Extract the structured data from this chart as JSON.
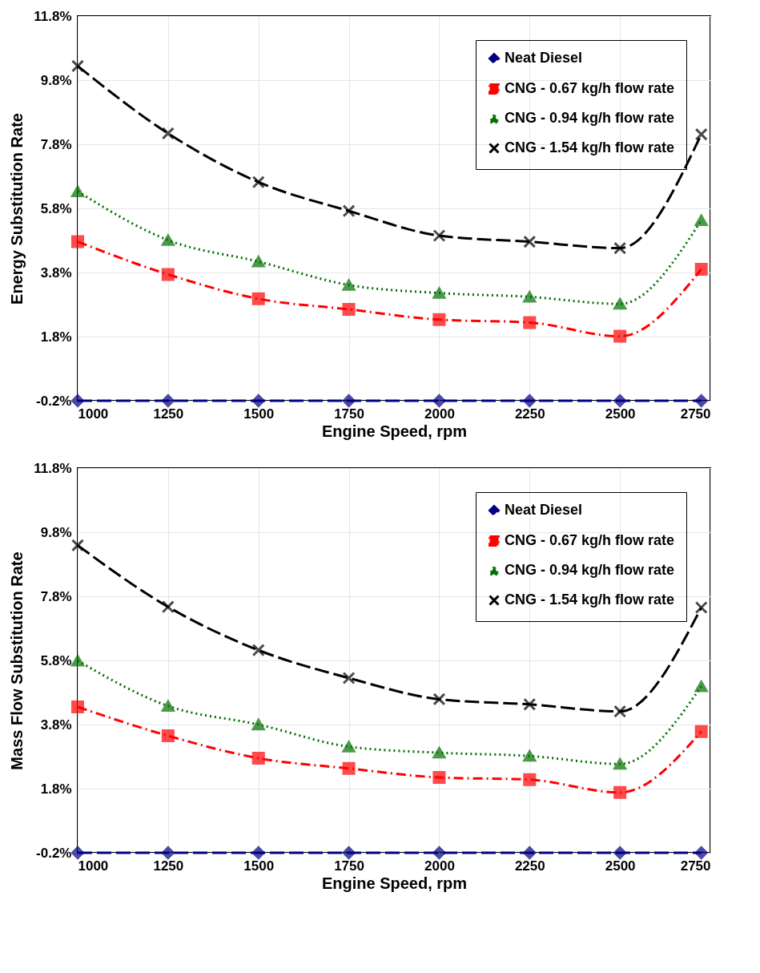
{
  "chart_data": [
    {
      "type": "line",
      "xlabel": "Engine Speed, rpm",
      "ylabel": "Energy Substitution Rate",
      "x": [
        1000,
        1250,
        1500,
        1750,
        2000,
        2250,
        2500,
        2725
      ],
      "xlim": [
        1000,
        2750
      ],
      "xticks": [
        1000,
        1250,
        1500,
        1750,
        2000,
        2250,
        2500,
        2750
      ],
      "ylim": [
        -0.2,
        11.8
      ],
      "yticks": [
        {
          "value": -0.2,
          "label": "-0.2%"
        },
        {
          "value": 1.8,
          "label": "1.8%"
        },
        {
          "value": 3.8,
          "label": "3.8%"
        },
        {
          "value": 5.8,
          "label": "5.8%"
        },
        {
          "value": 7.8,
          "label": "7.8%"
        },
        {
          "value": 9.8,
          "label": "9.8%"
        },
        {
          "value": 11.8,
          "label": "11.8%"
        }
      ],
      "grid": true,
      "legend": "top right",
      "series": [
        {
          "name": "Neat Diesel",
          "color": "#000080",
          "marker": "diamond",
          "line_style": "dashed",
          "values": [
            -0.2,
            -0.2,
            -0.2,
            -0.2,
            -0.2,
            -0.2,
            -0.2,
            -0.2
          ]
        },
        {
          "name": "CNG - 0.67 kg/h flow rate",
          "color": "#ff0000",
          "marker": "square",
          "line_style": "dashdot",
          "values": [
            4.76,
            3.74,
            2.98,
            2.65,
            2.33,
            2.24,
            1.81,
            3.9
          ]
        },
        {
          "name": "CNG - 0.94 kg/h flow rate",
          "color": "#007000",
          "marker": "triangle",
          "line_style": "dotted",
          "values": [
            6.33,
            4.81,
            4.14,
            3.41,
            3.16,
            3.04,
            2.82,
            5.43
          ]
        },
        {
          "name": "CNG - 1.54 kg/h flow rate",
          "color": "#000000",
          "marker": "cross",
          "line_style": "dashed",
          "values": [
            10.24,
            8.14,
            6.62,
            5.72,
            4.95,
            4.76,
            4.56,
            8.11
          ]
        }
      ]
    },
    {
      "type": "line",
      "xlabel": "Engine Speed, rpm",
      "ylabel": "Mass Flow Substitution Rate",
      "x": [
        1000,
        1250,
        1500,
        1750,
        2000,
        2250,
        2500,
        2725
      ],
      "xlim": [
        1000,
        2750
      ],
      "xticks": [
        1000,
        1250,
        1500,
        1750,
        2000,
        2250,
        2500,
        2750
      ],
      "ylim": [
        -0.2,
        11.8
      ],
      "yticks": [
        {
          "value": -0.2,
          "label": "-0.2%"
        },
        {
          "value": 1.8,
          "label": "1.8%"
        },
        {
          "value": 3.8,
          "label": "3.8%"
        },
        {
          "value": 5.8,
          "label": "5.8%"
        },
        {
          "value": 7.8,
          "label": "7.8%"
        },
        {
          "value": 9.8,
          "label": "9.8%"
        },
        {
          "value": 11.8,
          "label": "11.8%"
        }
      ],
      "grid": true,
      "legend": "top right",
      "series": [
        {
          "name": "Neat Diesel",
          "color": "#000080",
          "marker": "diamond",
          "line_style": "dashed",
          "values": [
            -0.2,
            -0.2,
            -0.2,
            -0.2,
            -0.2,
            -0.2,
            -0.2,
            -0.2
          ]
        },
        {
          "name": "CNG - 0.67 kg/h flow rate",
          "color": "#ff0000",
          "marker": "square",
          "line_style": "dashdot",
          "values": [
            4.35,
            3.45,
            2.75,
            2.43,
            2.15,
            2.08,
            1.68,
            3.58
          ]
        },
        {
          "name": "CNG - 0.94 kg/h flow rate",
          "color": "#007000",
          "marker": "triangle",
          "line_style": "dotted",
          "values": [
            5.79,
            4.38,
            3.8,
            3.11,
            2.92,
            2.82,
            2.57,
            4.99
          ]
        },
        {
          "name": "CNG - 1.54 kg/h flow rate",
          "color": "#000000",
          "marker": "cross",
          "line_style": "dashed",
          "values": [
            9.39,
            7.47,
            6.12,
            5.25,
            4.59,
            4.43,
            4.21,
            7.45
          ]
        }
      ]
    }
  ]
}
